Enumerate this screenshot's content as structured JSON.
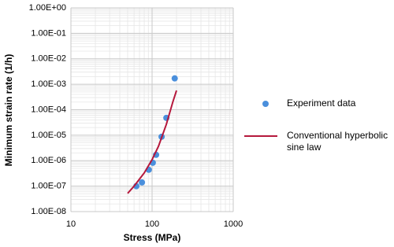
{
  "chart_data": {
    "type": "scatter",
    "x_label": "Stress (MPa)",
    "y_label": "Minimum strain rate (1/h)",
    "xscale": "log",
    "yscale": "log",
    "grid": true,
    "minor_grid": true,
    "legend": "right",
    "xlim": [
      10,
      1000
    ],
    "xticks": [
      10,
      100,
      1000
    ],
    "ylim": [
      1e-08,
      1
    ],
    "yticks": [
      {
        "value": 1,
        "label": "1.00E+00"
      },
      {
        "value": 0.1,
        "label": "1.00E-01"
      },
      {
        "value": 0.01,
        "label": "1.00E-02"
      },
      {
        "value": 0.001,
        "label": "1.00E-03"
      },
      {
        "value": 0.0001,
        "label": "1.00E-04"
      },
      {
        "value": 1e-05,
        "label": "1.00E-05"
      },
      {
        "value": 1e-06,
        "label": "1.00E-06"
      },
      {
        "value": 1e-07,
        "label": "1.00E-07"
      },
      {
        "value": 1e-08,
        "label": "1.00E-08"
      }
    ],
    "series": [
      {
        "name": "Experiment data",
        "type": "scatter",
        "color": "#4a8fdc",
        "x": [
          190,
          150,
          131,
          112,
          102,
          91,
          75,
          64
        ],
        "values": [
          0.0017,
          4.8e-05,
          8.7e-06,
          1.7e-06,
          8.3e-07,
          4.4e-07,
          1.4e-07,
          1e-07
        ]
      },
      {
        "name": "Conventional hyperbolic sine law",
        "type": "line",
        "color": "#b5183c",
        "x": [
          50,
          60,
          70,
          80,
          100,
          120,
          150,
          180,
          200
        ],
        "values": [
          5.2e-08,
          1e-07,
          1.9e-07,
          3.3e-07,
          1.1e-06,
          3.7e-06,
          2.7e-05,
          0.0002,
          0.00057
        ]
      }
    ]
  }
}
